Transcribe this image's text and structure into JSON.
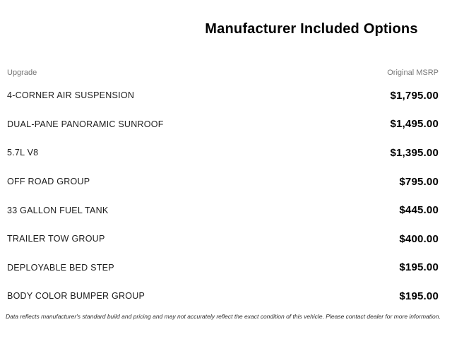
{
  "page": {
    "title": "Manufacturer Included Options",
    "background_color": "#ffffff"
  },
  "colors": {
    "title_text": "#000000",
    "column_header_text": "#757575",
    "row_label_text": "#1c1c1c",
    "price_text": "#000000",
    "footer_text": "#2e2e2e"
  },
  "table": {
    "columns": {
      "upgrade": "Upgrade",
      "msrp": "Original MSRP"
    },
    "rows": [
      {
        "label": "4-CORNER AIR SUSPENSION",
        "price": "$1,795.00"
      },
      {
        "label": "DUAL-PANE PANORAMIC SUNROOF",
        "price": "$1,495.00"
      },
      {
        "label": "5.7L V8",
        "price": "$1,395.00"
      },
      {
        "label": "OFF ROAD GROUP",
        "price": "$795.00"
      },
      {
        "label": "33 GALLON FUEL TANK",
        "price": "$445.00"
      },
      {
        "label": "TRAILER TOW GROUP",
        "price": "$400.00"
      },
      {
        "label": "DEPLOYABLE BED STEP",
        "price": "$195.00"
      },
      {
        "label": "BODY COLOR BUMPER GROUP",
        "price": "$195.00"
      }
    ]
  },
  "footer": {
    "disclaimer": "Data reflects manufacturer's standard build and pricing and may not accurately reflect the exact condition of this vehicle. Please contact dealer for more information."
  }
}
